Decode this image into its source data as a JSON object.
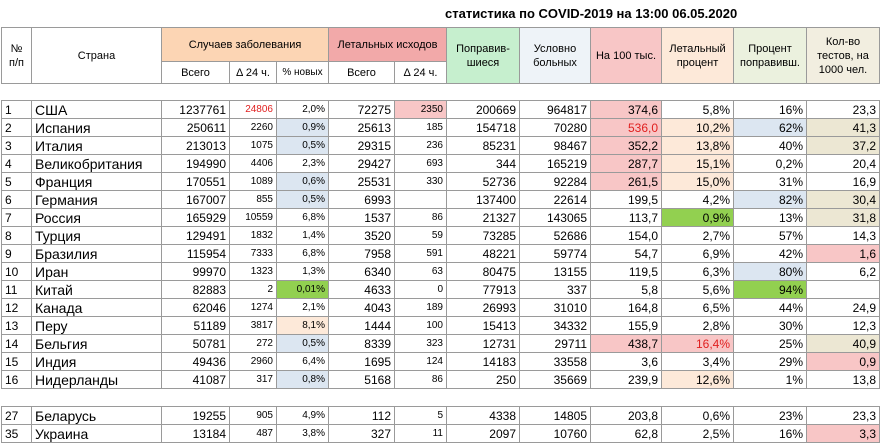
{
  "title": "статистика по COVID-2019 на 13:00 06.05.2020",
  "header": {
    "num": "№ п/п",
    "country": "Страна",
    "cases": "Случаев заболевания",
    "cases_total": "Всего",
    "cases_delta": "Δ 24 ч.",
    "cases_new_pct": "% новых",
    "deaths": "Летальных исходов",
    "deaths_total": "Всего",
    "deaths_delta": "Δ 24 ч.",
    "recovered": "Поправив-шиеся",
    "active": "Условно больных",
    "per_100k": "На 100 тыс.",
    "death_pct": "Летальный процент",
    "recovered_pct": "Процент поправивш.",
    "tests": "Кол-во тестов, на 1000 чел."
  },
  "table": {
    "rows": [
      [
        "1",
        "США",
        "1237761",
        "24806",
        "2,0%",
        "72275",
        "2350",
        "200669",
        "964817",
        "374,6",
        "5,8%",
        "16%",
        "23,3"
      ],
      [
        "2",
        "Испания",
        "250611",
        "2260",
        "0,9%",
        "25613",
        "185",
        "154718",
        "70280",
        "536,0",
        "10,2%",
        "62%",
        "41,3"
      ],
      [
        "3",
        "Италия",
        "213013",
        "1075",
        "0,5%",
        "29315",
        "236",
        "85231",
        "98467",
        "352,2",
        "13,8%",
        "40%",
        "37,2"
      ],
      [
        "4",
        "Великобритания",
        "194990",
        "4406",
        "2,3%",
        "29427",
        "693",
        "344",
        "165219",
        "287,7",
        "15,1%",
        "0,2%",
        "20,4"
      ],
      [
        "5",
        "Франция",
        "170551",
        "1089",
        "0,6%",
        "25531",
        "330",
        "52736",
        "92284",
        "261,5",
        "15,0%",
        "31%",
        "16,9"
      ],
      [
        "6",
        "Германия",
        "167007",
        "855",
        "0,5%",
        "6993",
        null,
        "137400",
        "22614",
        "199,5",
        "4,2%",
        "82%",
        "30,4"
      ],
      [
        "7",
        "Россия",
        "165929",
        "10559",
        "6,8%",
        "1537",
        "86",
        "21327",
        "143065",
        "113,7",
        "0,9%",
        "13%",
        "31,8"
      ],
      [
        "8",
        "Турция",
        "129491",
        "1832",
        "1,4%",
        "3520",
        "59",
        "73285",
        "52686",
        "154,0",
        "2,7%",
        "57%",
        "14,3"
      ],
      [
        "9",
        "Бразилия",
        "115954",
        "7333",
        "6,8%",
        "7958",
        "591",
        "48221",
        "59774",
        "54,7",
        "6,9%",
        "42%",
        "1,6"
      ],
      [
        "10",
        "Иран",
        "99970",
        "1323",
        "1,3%",
        "6340",
        "63",
        "80475",
        "13155",
        "119,5",
        "6,3%",
        "80%",
        "6,2"
      ],
      [
        "11",
        "Китай",
        "82883",
        "2",
        "0,01%",
        "4633",
        "0",
        "77913",
        "337",
        "5,8",
        "5,6%",
        "94%",
        null
      ],
      [
        "12",
        "Канада",
        "62046",
        "1274",
        "2,1%",
        "4043",
        "189",
        "26993",
        "31010",
        "164,8",
        "6,5%",
        "44%",
        "24,9"
      ],
      [
        "13",
        "Перу",
        "51189",
        "3817",
        "8,1%",
        "1444",
        "100",
        "15413",
        "34332",
        "155,9",
        "2,8%",
        "30%",
        "12,3"
      ],
      [
        "14",
        "Бельгия",
        "50781",
        "272",
        "0,5%",
        "8339",
        "323",
        "12731",
        "29711",
        "438,7",
        "16,4%",
        "25%",
        "40,9"
      ],
      [
        "15",
        "Индия",
        "49436",
        "2960",
        "6,4%",
        "1695",
        "124",
        "14183",
        "33558",
        "3,6",
        "3,4%",
        "29%",
        "0,9"
      ],
      [
        "16",
        "Нидерланды",
        "41087",
        "317",
        "0,8%",
        "5168",
        "86",
        "250",
        "35669",
        "239,9",
        "12,6%",
        "1%",
        "13,8"
      ]
    ],
    "extra_rows": [
      [
        "27",
        "Беларусь",
        "19255",
        "905",
        "4,9%",
        "112",
        "5",
        "4338",
        "14805",
        "203,8",
        "0,6%",
        "23%",
        "23,3"
      ],
      [
        "35",
        "Украина",
        "13184",
        "487",
        "3,8%",
        "327",
        "11",
        "2097",
        "10760",
        "62,8",
        "2,5%",
        "16%",
        "3,3"
      ]
    ]
  }
}
